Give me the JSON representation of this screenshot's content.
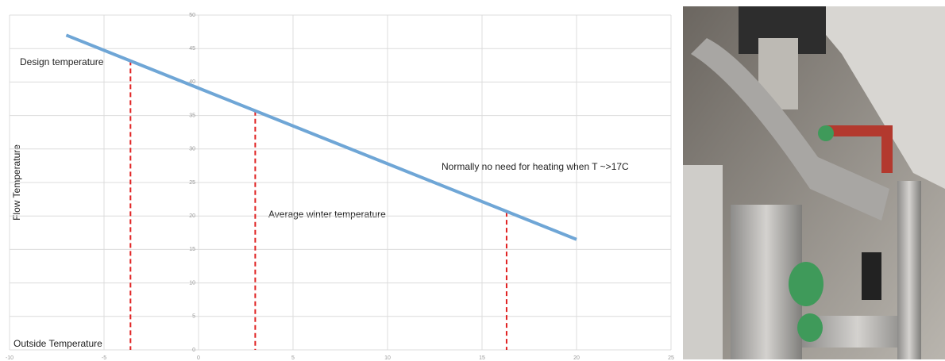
{
  "chart_data": {
    "type": "line",
    "x_label": "Outside Temperature",
    "y_label": "Flow Temperature",
    "xlim": [
      -10,
      25
    ],
    "xticks": [
      -10,
      -5,
      0,
      5,
      10,
      15,
      20,
      25
    ],
    "ylim": [
      0,
      50
    ],
    "yticks": [
      0,
      5,
      10,
      15,
      20,
      25,
      30,
      35,
      40,
      45,
      50
    ],
    "grid": true,
    "series": [
      {
        "color": "#6fa6d6",
        "x": [
          -7,
          20
        ],
        "values": [
          47,
          16.5
        ]
      }
    ],
    "markers": [
      {
        "label": "Design temperature",
        "x": -3.6,
        "y": 43.2,
        "color": "#e02020"
      },
      {
        "label": "Average winter temperature",
        "x": 3,
        "y": 35.7,
        "color": "#e02020"
      },
      {
        "label": "Normally no need for heating when T ~>17C",
        "x": 16.3,
        "y": 20.6,
        "color": "#e02020"
      }
    ]
  }
}
